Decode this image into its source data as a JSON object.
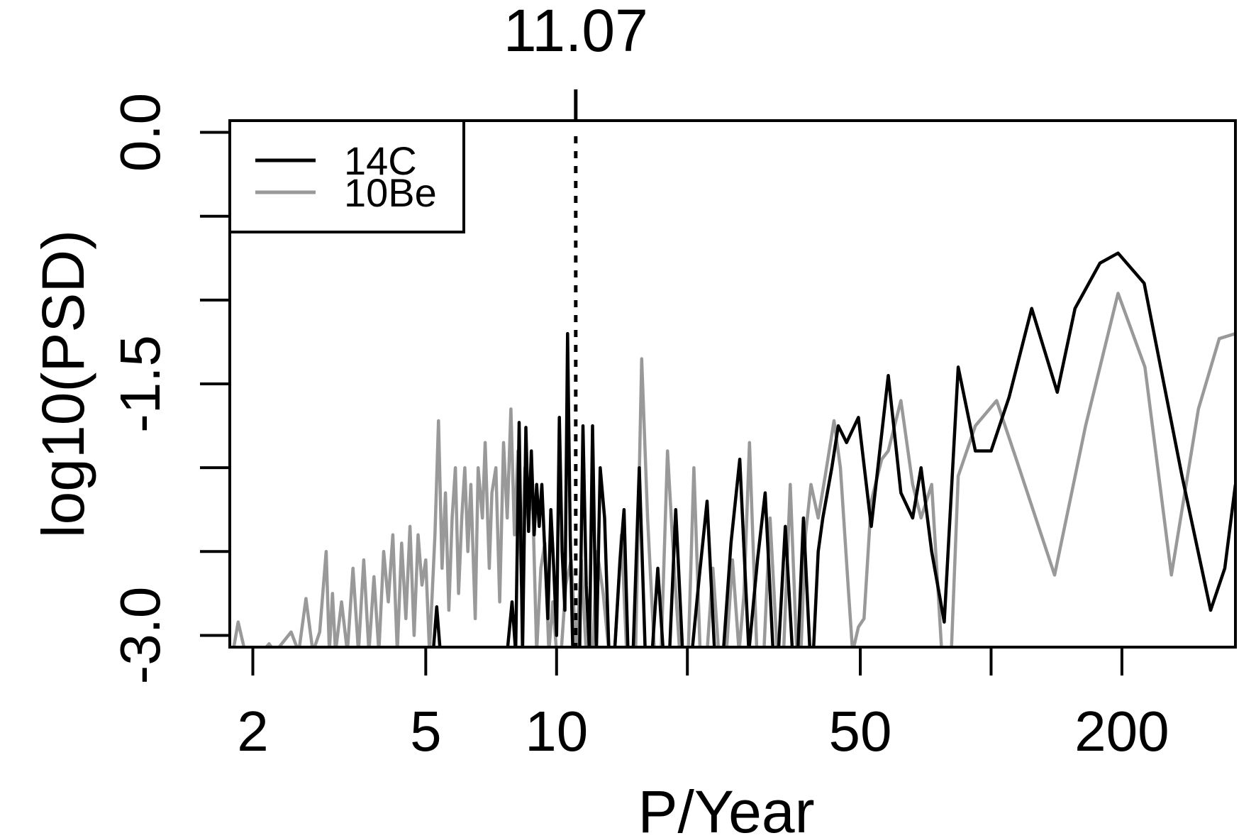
{
  "chart_data": {
    "type": "line",
    "title": "",
    "xlabel": "P/Year",
    "ylabel": "log10(PSD)",
    "x_scale": "log",
    "xlim": [
      1.77,
      365
    ],
    "ylim": [
      -3.07,
      0.07
    ],
    "x_ticks": [
      2,
      5,
      10,
      20,
      50,
      100,
      200
    ],
    "x_tick_labels": [
      "2",
      "5",
      "10",
      "",
      "50",
      "",
      "200"
    ],
    "y_ticks": [
      0.0,
      -0.5,
      -1.0,
      -1.5,
      -2.0,
      -2.5,
      -3.0
    ],
    "y_tick_labels": [
      "0.0",
      "",
      "",
      "-1.5",
      "",
      "",
      "-3.0"
    ],
    "grid": false,
    "legend": {
      "position": "top-left",
      "entries": [
        {
          "label": "14C",
          "color": "#000000"
        },
        {
          "label": "10Be",
          "color": "#999999"
        }
      ]
    },
    "marker": {
      "x": 11.07,
      "label": "11.07",
      "style": "dotted"
    },
    "series": [
      {
        "name": "14C",
        "color": "#000000",
        "points": [
          [
            5.2,
            -3.1
          ],
          [
            5.3,
            -2.83
          ],
          [
            5.4,
            -3.1
          ],
          [
            7.7,
            -3.1
          ],
          [
            7.9,
            -2.8
          ],
          [
            8.05,
            -3.1
          ],
          [
            8.2,
            -1.73
          ],
          [
            8.35,
            -3.1
          ],
          [
            8.5,
            -1.76
          ],
          [
            8.62,
            -2.38
          ],
          [
            8.75,
            -1.9
          ],
          [
            8.88,
            -2.4
          ],
          [
            9.0,
            -2.1
          ],
          [
            9.12,
            -2.35
          ],
          [
            9.25,
            -2.1
          ],
          [
            9.38,
            -2.45
          ],
          [
            9.55,
            -2.9
          ],
          [
            9.7,
            -2.25
          ],
          [
            9.85,
            -2.6
          ],
          [
            10.0,
            -3.0
          ],
          [
            10.15,
            -1.7
          ],
          [
            10.3,
            -2.5
          ],
          [
            10.45,
            -2.85
          ],
          [
            10.6,
            -1.2
          ],
          [
            10.75,
            -2.4
          ],
          [
            10.9,
            -3.1
          ],
          [
            11.3,
            -3.1
          ],
          [
            11.5,
            -1.75
          ],
          [
            11.7,
            -2.7
          ],
          [
            11.9,
            -3.1
          ],
          [
            12.1,
            -1.75
          ],
          [
            12.35,
            -3.1
          ],
          [
            12.6,
            -2.0
          ],
          [
            12.9,
            -2.3
          ],
          [
            13.2,
            -3.1
          ],
          [
            13.6,
            -3.1
          ],
          [
            14.0,
            -2.55
          ],
          [
            14.3,
            -2.25
          ],
          [
            14.6,
            -3.1
          ],
          [
            15.0,
            -3.1
          ],
          [
            15.5,
            -2.0
          ],
          [
            16.0,
            -3.1
          ],
          [
            16.6,
            -3.1
          ],
          [
            17.1,
            -2.6
          ],
          [
            17.6,
            -3.1
          ],
          [
            18.2,
            -3.1
          ],
          [
            18.8,
            -2.25
          ],
          [
            19.5,
            -3.1
          ],
          [
            20.5,
            -3.1
          ],
          [
            21.3,
            -2.65
          ],
          [
            22.2,
            -2.2
          ],
          [
            23.1,
            -3.1
          ],
          [
            24.2,
            -3.1
          ],
          [
            25.2,
            -2.45
          ],
          [
            26.4,
            -1.95
          ],
          [
            27.7,
            -3.1
          ],
          [
            29.0,
            -2.55
          ],
          [
            30.2,
            -2.15
          ],
          [
            31.5,
            -3.1
          ],
          [
            32.4,
            -3.1
          ],
          [
            33.6,
            -2.35
          ],
          [
            34.9,
            -3.1
          ],
          [
            35.9,
            -3.1
          ],
          [
            37.0,
            -2.3
          ],
          [
            38.3,
            -3.1
          ],
          [
            39.0,
            -3.1
          ],
          [
            40.0,
            -2.5
          ],
          [
            41.0,
            -2.3
          ],
          [
            43.0,
            -2.0
          ],
          [
            44.5,
            -1.75
          ],
          [
            46.5,
            -1.85
          ],
          [
            49.5,
            -1.7
          ],
          [
            53.0,
            -2.35
          ],
          [
            58.0,
            -1.45
          ],
          [
            62.0,
            -2.15
          ],
          [
            66.0,
            -2.3
          ],
          [
            69.0,
            -2.0
          ],
          [
            73.0,
            -2.5
          ],
          [
            78.0,
            -2.92
          ],
          [
            84.0,
            -1.4
          ],
          [
            92.0,
            -1.9
          ],
          [
            100.0,
            -1.9
          ],
          [
            110.0,
            -1.58
          ],
          [
            124.0,
            -1.05
          ],
          [
            142.0,
            -1.55
          ],
          [
            156.0,
            -1.05
          ],
          [
            178.0,
            -0.78
          ],
          [
            196.0,
            -0.72
          ],
          [
            225.0,
            -0.9
          ],
          [
            275.0,
            -2.05
          ],
          [
            320.0,
            -2.85
          ],
          [
            345.0,
            -2.6
          ],
          [
            365.0,
            -2.1
          ]
        ]
      },
      {
        "name": "10Be",
        "color": "#999999",
        "points": [
          [
            1.8,
            -3.1
          ],
          [
            1.85,
            -2.92
          ],
          [
            1.92,
            -3.1
          ],
          [
            2.1,
            -3.1
          ],
          [
            2.18,
            -3.05
          ],
          [
            2.25,
            -3.1
          ],
          [
            2.45,
            -2.98
          ],
          [
            2.55,
            -3.1
          ],
          [
            2.65,
            -2.78
          ],
          [
            2.75,
            -3.1
          ],
          [
            2.85,
            -2.98
          ],
          [
            2.95,
            -2.5
          ],
          [
            3.0,
            -3.1
          ],
          [
            3.05,
            -2.75
          ],
          [
            3.1,
            -3.1
          ],
          [
            3.2,
            -2.8
          ],
          [
            3.3,
            -3.1
          ],
          [
            3.4,
            -2.6
          ],
          [
            3.5,
            -3.1
          ],
          [
            3.6,
            -2.55
          ],
          [
            3.7,
            -3.1
          ],
          [
            3.8,
            -2.65
          ],
          [
            3.9,
            -3.1
          ],
          [
            4.0,
            -2.5
          ],
          [
            4.1,
            -2.8
          ],
          [
            4.2,
            -2.4
          ],
          [
            4.3,
            -3.1
          ],
          [
            4.4,
            -2.45
          ],
          [
            4.5,
            -2.9
          ],
          [
            4.6,
            -2.35
          ],
          [
            4.7,
            -3.0
          ],
          [
            4.8,
            -2.4
          ],
          [
            4.9,
            -2.7
          ],
          [
            5.0,
            -2.55
          ],
          [
            5.1,
            -3.1
          ],
          [
            5.25,
            -2.4
          ],
          [
            5.35,
            -1.72
          ],
          [
            5.45,
            -2.6
          ],
          [
            5.55,
            -2.15
          ],
          [
            5.65,
            -2.85
          ],
          [
            5.75,
            -2.3
          ],
          [
            5.85,
            -2.0
          ],
          [
            5.95,
            -2.75
          ],
          [
            6.05,
            -2.3
          ],
          [
            6.15,
            -2.0
          ],
          [
            6.25,
            -2.5
          ],
          [
            6.35,
            -2.1
          ],
          [
            6.5,
            -2.9
          ],
          [
            6.6,
            -2.0
          ],
          [
            6.75,
            -2.3
          ],
          [
            6.85,
            -1.85
          ],
          [
            7.0,
            -2.6
          ],
          [
            7.1,
            -2.15
          ],
          [
            7.25,
            -2.0
          ],
          [
            7.4,
            -2.8
          ],
          [
            7.55,
            -1.85
          ],
          [
            7.7,
            -2.3
          ],
          [
            7.85,
            -1.65
          ],
          [
            8.0,
            -2.4
          ],
          [
            8.15,
            -1.9
          ],
          [
            8.3,
            -2.7
          ],
          [
            8.45,
            -2.0
          ],
          [
            8.6,
            -2.3
          ],
          [
            8.8,
            -2.15
          ],
          [
            9.0,
            -3.1
          ],
          [
            9.2,
            -2.6
          ],
          [
            9.4,
            -2.45
          ],
          [
            9.6,
            -3.1
          ],
          [
            9.8,
            -2.8
          ],
          [
            10.0,
            -3.1
          ],
          [
            10.25,
            -3.1
          ],
          [
            10.5,
            -2.7
          ],
          [
            10.8,
            -2.55
          ],
          [
            11.1,
            -3.1
          ],
          [
            11.4,
            -2.55
          ],
          [
            11.7,
            -3.1
          ],
          [
            12.1,
            -3.1
          ],
          [
            12.4,
            -2.5
          ],
          [
            12.8,
            -2.75
          ],
          [
            13.2,
            -3.1
          ],
          [
            13.6,
            -3.1
          ],
          [
            14.1,
            -2.4
          ],
          [
            14.5,
            -3.1
          ],
          [
            15.2,
            -3.1
          ],
          [
            15.7,
            -1.35
          ],
          [
            16.2,
            -2.3
          ],
          [
            16.8,
            -3.1
          ],
          [
            17.4,
            -3.1
          ],
          [
            18.0,
            -1.9
          ],
          [
            18.6,
            -2.55
          ],
          [
            19.2,
            -3.1
          ],
          [
            20.1,
            -3.1
          ],
          [
            20.7,
            -2.0
          ],
          [
            21.4,
            -3.1
          ],
          [
            22.2,
            -3.1
          ],
          [
            22.9,
            -2.6
          ],
          [
            23.6,
            -3.1
          ],
          [
            24.6,
            -3.1
          ],
          [
            25.4,
            -2.55
          ],
          [
            26.3,
            -3.1
          ],
          [
            27.0,
            -2.75
          ],
          [
            27.8,
            -1.85
          ],
          [
            28.9,
            -3.1
          ],
          [
            30.0,
            -3.1
          ],
          [
            31.0,
            -2.3
          ],
          [
            32.2,
            -3.1
          ],
          [
            33.3,
            -3.1
          ],
          [
            34.5,
            -2.1
          ],
          [
            35.7,
            -3.1
          ],
          [
            36.5,
            -3.1
          ],
          [
            37.4,
            -2.4
          ],
          [
            38.5,
            -2.1
          ],
          [
            40.0,
            -2.3
          ],
          [
            41.5,
            -2.05
          ],
          [
            43.5,
            -1.72
          ],
          [
            45.0,
            -2.0
          ],
          [
            47.0,
            -2.75
          ],
          [
            48.0,
            -3.1
          ],
          [
            49.5,
            -2.95
          ],
          [
            51.0,
            -2.9
          ],
          [
            53.0,
            -2.2
          ],
          [
            56.0,
            -1.95
          ],
          [
            58.0,
            -1.9
          ],
          [
            62.0,
            -1.6
          ],
          [
            66.0,
            -2.1
          ],
          [
            69.0,
            -2.3
          ],
          [
            73.0,
            -2.1
          ],
          [
            77.0,
            -3.1
          ],
          [
            81.0,
            -3.1
          ],
          [
            84.0,
            -2.05
          ],
          [
            92.0,
            -1.75
          ],
          [
            103.0,
            -1.6
          ],
          [
            116.0,
            -2.0
          ],
          [
            140.0,
            -2.64
          ],
          [
            165.0,
            -1.75
          ],
          [
            196.0,
            -0.96
          ],
          [
            226.0,
            -1.4
          ],
          [
            260.0,
            -2.64
          ],
          [
            300.0,
            -1.65
          ],
          [
            335.0,
            -1.23
          ],
          [
            365.0,
            -1.2
          ]
        ]
      }
    ]
  }
}
